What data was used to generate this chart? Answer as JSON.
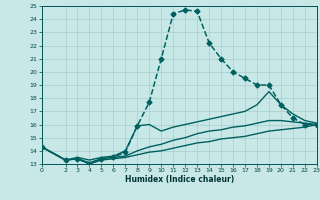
{
  "xlabel": "Humidex (Indice chaleur)",
  "xlim": [
    0,
    23
  ],
  "ylim": [
    13,
    25
  ],
  "yticks": [
    13,
    14,
    15,
    16,
    17,
    18,
    19,
    20,
    21,
    22,
    23,
    24,
    25
  ],
  "xticks": [
    0,
    2,
    3,
    4,
    5,
    6,
    7,
    8,
    9,
    10,
    11,
    12,
    13,
    14,
    15,
    16,
    17,
    18,
    19,
    20,
    21,
    22,
    23
  ],
  "bg_color": "#c8e8e8",
  "grid_color": "#a8cccc",
  "line_color": "#006060",
  "lines": [
    {
      "x": [
        0,
        2,
        3,
        4,
        5,
        6,
        7,
        8,
        9,
        10,
        11,
        12,
        13,
        14,
        15,
        16,
        17,
        18,
        19,
        20,
        21,
        22,
        23
      ],
      "y": [
        14.3,
        13.3,
        13.4,
        13.0,
        13.4,
        13.5,
        13.9,
        15.9,
        17.7,
        21.0,
        24.4,
        24.7,
        24.6,
        22.2,
        21.0,
        20.0,
        19.5,
        19.0,
        19.0,
        17.5,
        16.5,
        16.0,
        16.0
      ],
      "marker": "D",
      "markersize": 2.5,
      "linewidth": 1.1,
      "linestyle": "--"
    },
    {
      "x": [
        0,
        2,
        3,
        4,
        5,
        6,
        7,
        8,
        9,
        10,
        11,
        12,
        13,
        14,
        15,
        16,
        17,
        18,
        19,
        20,
        21,
        22,
        23
      ],
      "y": [
        14.3,
        13.3,
        13.5,
        13.3,
        13.5,
        13.6,
        14.0,
        15.9,
        16.0,
        15.5,
        15.8,
        16.0,
        16.2,
        16.4,
        16.6,
        16.8,
        17.0,
        17.5,
        18.5,
        17.5,
        16.8,
        16.3,
        16.1
      ],
      "marker": null,
      "markersize": 0,
      "linewidth": 1.0,
      "linestyle": "-"
    },
    {
      "x": [
        0,
        2,
        3,
        4,
        5,
        6,
        7,
        8,
        9,
        10,
        11,
        12,
        13,
        14,
        15,
        16,
        17,
        18,
        19,
        20,
        21,
        22,
        23
      ],
      "y": [
        14.3,
        13.3,
        13.4,
        13.1,
        13.4,
        13.5,
        13.6,
        14.0,
        14.3,
        14.5,
        14.8,
        15.0,
        15.3,
        15.5,
        15.6,
        15.8,
        15.9,
        16.1,
        16.3,
        16.3,
        16.2,
        16.1,
        16.0
      ],
      "marker": null,
      "markersize": 0,
      "linewidth": 1.0,
      "linestyle": "-"
    },
    {
      "x": [
        0,
        2,
        3,
        4,
        5,
        6,
        7,
        8,
        9,
        10,
        11,
        12,
        13,
        14,
        15,
        16,
        17,
        18,
        19,
        20,
        21,
        22,
        23
      ],
      "y": [
        14.3,
        13.3,
        13.4,
        13.0,
        13.3,
        13.4,
        13.5,
        13.7,
        13.9,
        14.0,
        14.2,
        14.4,
        14.6,
        14.7,
        14.9,
        15.0,
        15.1,
        15.3,
        15.5,
        15.6,
        15.7,
        15.8,
        16.0
      ],
      "marker": null,
      "markersize": 0,
      "linewidth": 1.0,
      "linestyle": "-"
    }
  ]
}
